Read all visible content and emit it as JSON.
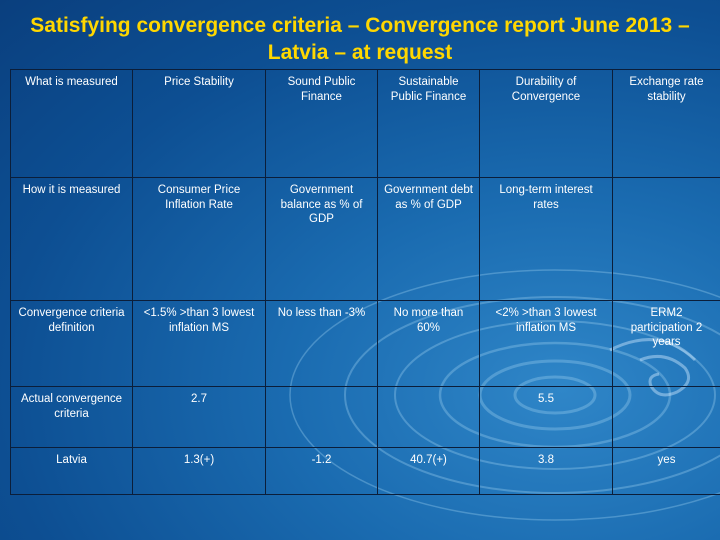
{
  "title_line1": "Satisfying convergence criteria – Convergence report June 2013 –",
  "title_line2": "Latvia – at request",
  "table": {
    "row1": {
      "label": "What is measured",
      "price": "Price Stability",
      "sound": "Sound Public Finance",
      "sustainable": "Sustainable Public Finance",
      "durability": "Durability of Convergence",
      "exchange": "Exchange rate stability"
    },
    "row2": {
      "label": "How it is measured",
      "price": "Consumer Price Inflation Rate",
      "sound": "Government balance as % of GDP",
      "sustainable": "Government debt as % of GDP",
      "durability": "Long-term interest rates"
    },
    "row3": {
      "label": "Convergence criteria definition",
      "price": "<1.5% >than 3 lowest inflation MS",
      "sound": "No less than -3%",
      "sustainable": "No more than 60%",
      "durability": "<2% >than 3 lowest inflation MS",
      "exchange": "ERM2 participation 2 years"
    },
    "row4": {
      "label": "Actual convergence criteria",
      "price": "2.7",
      "durability": "5.5"
    },
    "row5": {
      "label": "Latvia",
      "price": "1.3(+)",
      "sound": "-1.2",
      "sustainable": "40.7(+)",
      "durability": "3.8",
      "exchange": "yes"
    }
  }
}
